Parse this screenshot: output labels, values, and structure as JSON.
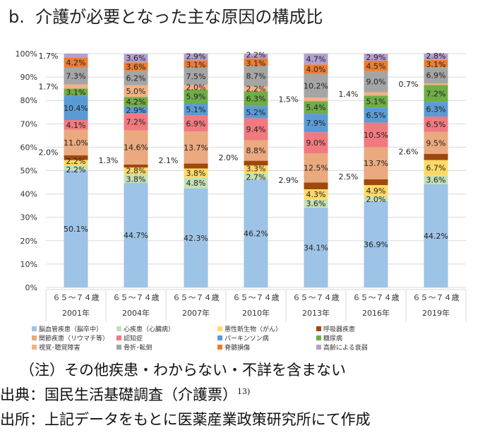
{
  "chart_data": {
    "type": "bar",
    "stacked": true,
    "title": "b.  介護が必要となった主な原因の構成比",
    "ylim": [
      0,
      100
    ],
    "yticks": [
      "0%",
      "10%",
      "20%",
      "30%",
      "40%",
      "50%",
      "60%",
      "70%",
      "80%",
      "90%",
      "100%"
    ],
    "grid": true,
    "legend_position": "bottom",
    "categories": [
      {
        "age": "６５～７４歳",
        "year": "2001年"
      },
      {
        "age": "６５～７４歳",
        "year": "2004年"
      },
      {
        "age": "６５～７４歳",
        "year": "2007年"
      },
      {
        "age": "６５～７４歳",
        "year": "2010年"
      },
      {
        "age": "６５～７４歳",
        "year": "2013年"
      },
      {
        "age": "６５～７４歳",
        "year": "2016年"
      },
      {
        "age": "６５～７４歳",
        "year": "2019年"
      }
    ],
    "series": [
      {
        "name": "脳血管疾患（脳卒中）",
        "color": "#9dc3e6",
        "values": [
          50.1,
          44.7,
          42.3,
          46.2,
          34.1,
          36.9,
          44.2
        ]
      },
      {
        "name": "心疾患（心臓病）",
        "color": "#c5e0b4",
        "values": [
          2.2,
          3.8,
          4.8,
          2.7,
          3.6,
          2.0,
          3.6
        ]
      },
      {
        "name": "悪性新生物（がん）",
        "color": "#ffd966",
        "values": [
          2.2,
          2.8,
          3.8,
          3.3,
          4.3,
          4.9,
          6.7
        ]
      },
      {
        "name": "呼吸器疾患",
        "color": "#9e480e",
        "values": [
          2.0,
          1.3,
          2.1,
          2.0,
          2.9,
          2.5,
          2.6
        ]
      },
      {
        "name": "関節疾患（リウマチ等）",
        "color": "#eaa97e",
        "values": [
          11.0,
          14.6,
          13.7,
          8.8,
          12.5,
          13.7,
          9.5
        ]
      },
      {
        "name": "認知症",
        "color": "#f07a80",
        "values": [
          4.1,
          7.2,
          6.9,
          9.4,
          9.0,
          10.5,
          6.5
        ]
      },
      {
        "name": "パーキンソン病",
        "color": "#5b9bd5",
        "values": [
          10.4,
          2.9,
          5.1,
          5.2,
          7.9,
          6.5,
          6.3
        ]
      },
      {
        "name": "糖尿病",
        "color": "#70ad47",
        "values": [
          3.1,
          4.2,
          5.9,
          6.3,
          5.4,
          5.1,
          7.2
        ]
      },
      {
        "name": "視覚･聴覚障害",
        "color": "#f4b183",
        "values": [
          1.7,
          5.0,
          2.0,
          2.2,
          1.5,
          1.4,
          0.7
        ]
      },
      {
        "name": "骨折･転倒",
        "color": "#a5a5a5",
        "values": [
          7.3,
          6.2,
          7.5,
          8.7,
          10.2,
          9.0,
          6.9
        ]
      },
      {
        "name": "脊髄損傷",
        "color": "#ed7d31",
        "values": [
          4.2,
          3.6,
          3.1,
          3.1,
          4.0,
          4.5,
          3.1
        ]
      },
      {
        "name": "高齢による衰弱",
        "color": "#b4a0d0",
        "values": [
          1.7,
          3.6,
          2.9,
          2.2,
          4.7,
          2.9,
          2.8
        ]
      }
    ]
  },
  "notes": {
    "line1": "（注）その他疾患・わからない・不詳を含まない",
    "line2": "出典：国民生活基礎調査（介護票）",
    "line2_ref": "13)",
    "line3": "出所：上記データをもとに医薬産業政策研究所にて作成"
  }
}
